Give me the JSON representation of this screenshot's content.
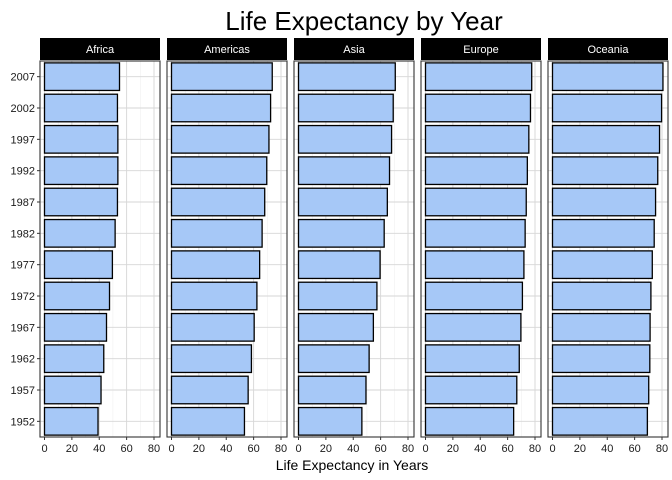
{
  "chart_data": {
    "type": "bar",
    "orientation": "horizontal",
    "title": "Life Expectancy by Year",
    "xlabel": "Life Expectancy in Years",
    "ylabel": "",
    "xlim": [
      0,
      80
    ],
    "x_ticks": [
      0,
      20,
      40,
      60,
      80
    ],
    "grid": true,
    "bar_fill": "#a6c8f7",
    "bar_stroke": "#000000",
    "strip_fill": "#000000",
    "strip_text_color": "#ffffff",
    "categories": [
      "1952",
      "1957",
      "1962",
      "1967",
      "1972",
      "1977",
      "1982",
      "1987",
      "1992",
      "1997",
      "2002",
      "2007"
    ],
    "facets": [
      {
        "name": "Africa",
        "values": [
          39.1,
          41.3,
          43.3,
          45.3,
          47.5,
          49.6,
          51.6,
          53.3,
          53.6,
          53.6,
          53.3,
          54.8
        ]
      },
      {
        "name": "Americas",
        "values": [
          53.3,
          56.0,
          58.4,
          60.4,
          62.4,
          64.4,
          66.2,
          68.1,
          69.6,
          71.2,
          72.4,
          73.6
        ]
      },
      {
        "name": "Asia",
        "values": [
          46.3,
          49.3,
          51.6,
          54.7,
          57.3,
          59.6,
          62.6,
          64.9,
          66.5,
          68.0,
          69.2,
          70.7
        ]
      },
      {
        "name": "Europe",
        "values": [
          64.4,
          66.7,
          68.5,
          69.7,
          70.8,
          71.9,
          72.8,
          73.6,
          74.4,
          75.5,
          76.7,
          77.6
        ]
      },
      {
        "name": "Oceania",
        "values": [
          69.3,
          70.3,
          71.1,
          71.3,
          71.9,
          72.9,
          74.3,
          75.3,
          76.9,
          78.2,
          79.7,
          80.7
        ]
      }
    ]
  }
}
